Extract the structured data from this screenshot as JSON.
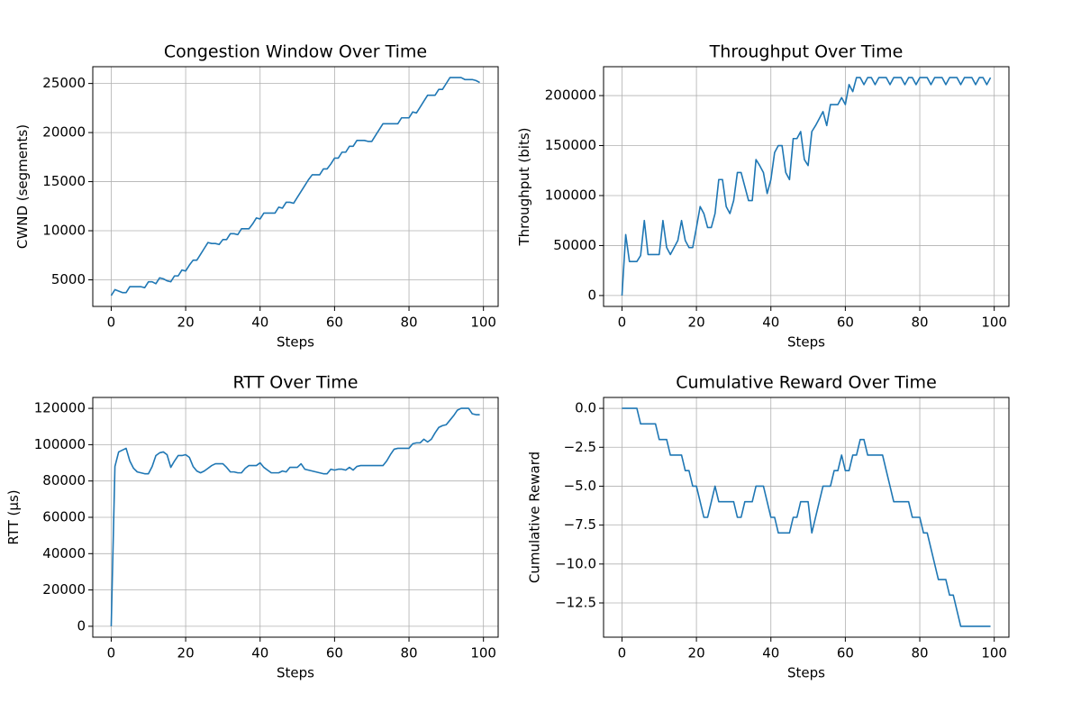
{
  "chart_data": [
    {
      "type": "line",
      "title": "Congestion Window Over Time",
      "xlabel": "Steps",
      "ylabel": "CWND (segments)",
      "x": [
        0,
        1,
        2,
        3,
        4,
        5,
        6,
        7,
        8,
        9,
        10,
        11,
        12,
        13,
        14,
        15,
        16,
        17,
        18,
        19,
        20,
        21,
        22,
        23,
        24,
        25,
        26,
        27,
        28,
        29,
        30,
        31,
        32,
        33,
        34,
        35,
        36,
        37,
        38,
        39,
        40,
        41,
        42,
        43,
        44,
        45,
        46,
        47,
        48,
        49,
        50,
        51,
        52,
        53,
        54,
        55,
        56,
        57,
        58,
        59,
        60,
        61,
        62,
        63,
        64,
        65,
        66,
        67,
        68,
        69,
        70,
        71,
        72,
        73,
        74,
        75,
        76,
        77,
        78,
        79,
        80,
        81,
        82,
        83,
        84,
        85,
        86,
        87,
        88,
        89,
        90,
        91,
        92,
        93,
        94,
        95,
        96,
        97,
        98,
        99
      ],
      "series": [
        {
          "color": "#1f77b4",
          "values": [
            3400,
            4000,
            3850,
            3700,
            3700,
            4300,
            4300,
            4300,
            4300,
            4200,
            4800,
            4800,
            4600,
            5200,
            5100,
            4900,
            4800,
            5400,
            5400,
            6000,
            5900,
            6500,
            7000,
            7000,
            7600,
            8200,
            8800,
            8700,
            8700,
            8600,
            9100,
            9100,
            9700,
            9700,
            9600,
            10200,
            10200,
            10200,
            10700,
            11300,
            11200,
            11800,
            11800,
            11800,
            11800,
            12400,
            12300,
            12900,
            12900,
            12800,
            13400,
            14000,
            14600,
            15200,
            15700,
            15700,
            15700,
            16300,
            16300,
            16800,
            17400,
            17400,
            18000,
            18000,
            18600,
            18600,
            19200,
            19200,
            19200,
            19100,
            19100,
            19700,
            20300,
            20900,
            20900,
            20900,
            20900,
            20900,
            21500,
            21500,
            21500,
            22100,
            22000,
            22600,
            23200,
            23800,
            23800,
            23800,
            24400,
            24400,
            25000,
            25600,
            25600,
            25600,
            25600,
            25400,
            25400,
            25400,
            25300,
            25100
          ]
        }
      ],
      "xlim": [
        -4.95,
        103.95
      ],
      "ylim": [
        2290,
        26710
      ],
      "xticks": [
        0,
        20,
        40,
        60,
        80,
        100
      ],
      "yticks": [
        5000,
        10000,
        15000,
        20000,
        25000
      ],
      "grid": true
    },
    {
      "type": "line",
      "title": "Throughput Over Time",
      "xlabel": "Steps",
      "ylabel": "Throughput (bits)",
      "x": [
        0,
        1,
        2,
        3,
        4,
        5,
        6,
        7,
        8,
        9,
        10,
        11,
        12,
        13,
        14,
        15,
        16,
        17,
        18,
        19,
        20,
        21,
        22,
        23,
        24,
        25,
        26,
        27,
        28,
        29,
        30,
        31,
        32,
        33,
        34,
        35,
        36,
        37,
        38,
        39,
        40,
        41,
        42,
        43,
        44,
        45,
        46,
        47,
        48,
        49,
        50,
        51,
        52,
        53,
        54,
        55,
        56,
        57,
        58,
        59,
        60,
        61,
        62,
        63,
        64,
        65,
        66,
        67,
        68,
        69,
        70,
        71,
        72,
        73,
        74,
        75,
        76,
        77,
        78,
        79,
        80,
        81,
        82,
        83,
        84,
        85,
        86,
        87,
        88,
        89,
        90,
        91,
        92,
        93,
        94,
        95,
        96,
        97,
        98,
        99
      ],
      "series": [
        {
          "color": "#1f77b4",
          "values": [
            0,
            61000,
            34000,
            34000,
            34000,
            40000,
            75000,
            41000,
            41000,
            41000,
            41000,
            75000,
            48000,
            41000,
            48000,
            55000,
            75000,
            55000,
            48000,
            48000,
            68000,
            89000,
            82000,
            68000,
            68000,
            82000,
            116000,
            116000,
            89000,
            82000,
            95000,
            123000,
            123000,
            109000,
            95000,
            95000,
            136000,
            130000,
            123000,
            102000,
            116000,
            143000,
            150000,
            150000,
            123000,
            116000,
            157000,
            157000,
            164000,
            136000,
            130000,
            164000,
            170000,
            177000,
            184000,
            170000,
            191000,
            191000,
            191000,
            198000,
            191000,
            211000,
            204000,
            218000,
            218000,
            211000,
            218000,
            218000,
            211000,
            218000,
            218000,
            218000,
            211000,
            218000,
            218000,
            218000,
            211000,
            218000,
            218000,
            211000,
            218000,
            218000,
            218000,
            211000,
            218000,
            218000,
            218000,
            211000,
            218000,
            218000,
            218000,
            211000,
            218000,
            218000,
            218000,
            211000,
            218000,
            218000,
            211000,
            218000
          ]
        }
      ],
      "xlim": [
        -4.95,
        103.95
      ],
      "ylim": [
        -10900,
        228900
      ],
      "xticks": [
        0,
        20,
        40,
        60,
        80,
        100
      ],
      "yticks": [
        0,
        50000,
        100000,
        150000,
        200000
      ],
      "grid": true
    },
    {
      "type": "line",
      "title": "RTT Over Time",
      "xlabel": "Steps",
      "ylabel": "RTT (µs)",
      "x": [
        0,
        1,
        2,
        3,
        4,
        5,
        6,
        7,
        8,
        9,
        10,
        11,
        12,
        13,
        14,
        15,
        16,
        17,
        18,
        19,
        20,
        21,
        22,
        23,
        24,
        25,
        26,
        27,
        28,
        29,
        30,
        31,
        32,
        33,
        34,
        35,
        36,
        37,
        38,
        39,
        40,
        41,
        42,
        43,
        44,
        45,
        46,
        47,
        48,
        49,
        50,
        51,
        52,
        53,
        54,
        55,
        56,
        57,
        58,
        59,
        60,
        61,
        62,
        63,
        64,
        65,
        66,
        67,
        68,
        69,
        70,
        71,
        72,
        73,
        74,
        75,
        76,
        77,
        78,
        79,
        80,
        81,
        82,
        83,
        84,
        85,
        86,
        87,
        88,
        89,
        90,
        91,
        92,
        93,
        94,
        95,
        96,
        97,
        98,
        99
      ],
      "series": [
        {
          "color": "#1f77b4",
          "values": [
            0,
            88000,
            96000,
            97000,
            98000,
            91000,
            87000,
            85000,
            84500,
            84000,
            84000,
            88000,
            94000,
            95500,
            96000,
            94500,
            87500,
            91000,
            94000,
            94000,
            94500,
            93000,
            88000,
            85500,
            84500,
            85500,
            87000,
            88500,
            89500,
            89500,
            89500,
            87500,
            85000,
            85000,
            84500,
            84500,
            87000,
            88500,
            88500,
            88500,
            90000,
            87500,
            86000,
            84500,
            84500,
            84500,
            85500,
            85000,
            87500,
            87500,
            87500,
            89500,
            86500,
            86000,
            85500,
            85000,
            84500,
            84000,
            84000,
            86500,
            86000,
            86500,
            86500,
            86000,
            87500,
            86000,
            88000,
            88500,
            88500,
            88500,
            88500,
            88500,
            88500,
            88500,
            91000,
            94500,
            97500,
            98000,
            98000,
            98000,
            98000,
            100500,
            101000,
            101000,
            103000,
            101500,
            103000,
            106500,
            109500,
            110500,
            111000,
            113500,
            116000,
            119000,
            120000,
            120000,
            120000,
            117000,
            116500,
            116500
          ]
        }
      ],
      "xlim": [
        -4.95,
        103.95
      ],
      "ylim": [
        -6000,
        126000
      ],
      "xticks": [
        0,
        20,
        40,
        60,
        80,
        100
      ],
      "yticks": [
        0,
        20000,
        40000,
        60000,
        80000,
        100000,
        120000
      ],
      "grid": true
    },
    {
      "type": "line",
      "title": "Cumulative Reward Over Time",
      "xlabel": "Steps",
      "ylabel": "Cumulative Reward",
      "x": [
        0,
        1,
        2,
        3,
        4,
        5,
        6,
        7,
        8,
        9,
        10,
        11,
        12,
        13,
        14,
        15,
        16,
        17,
        18,
        19,
        20,
        21,
        22,
        23,
        24,
        25,
        26,
        27,
        28,
        29,
        30,
        31,
        32,
        33,
        34,
        35,
        36,
        37,
        38,
        39,
        40,
        41,
        42,
        43,
        44,
        45,
        46,
        47,
        48,
        49,
        50,
        51,
        52,
        53,
        54,
        55,
        56,
        57,
        58,
        59,
        60,
        61,
        62,
        63,
        64,
        65,
        66,
        67,
        68,
        69,
        70,
        71,
        72,
        73,
        74,
        75,
        76,
        77,
        78,
        79,
        80,
        81,
        82,
        83,
        84,
        85,
        86,
        87,
        88,
        89,
        90,
        91,
        92,
        93,
        94,
        95,
        96,
        97,
        98,
        99
      ],
      "series": [
        {
          "color": "#1f77b4",
          "values": [
            0,
            0,
            0,
            0,
            0,
            -1,
            -1,
            -1,
            -1,
            -1,
            -2,
            -2,
            -2,
            -3,
            -3,
            -3,
            -3,
            -4,
            -4,
            -5,
            -5,
            -6,
            -7,
            -7,
            -6,
            -5,
            -6,
            -6,
            -6,
            -6,
            -6,
            -7,
            -7,
            -6,
            -6,
            -6,
            -5,
            -5,
            -5,
            -6,
            -7,
            -7,
            -8,
            -8,
            -8,
            -8,
            -7,
            -7,
            -6,
            -6,
            -6,
            -8,
            -7,
            -6,
            -5,
            -5,
            -5,
            -4,
            -4,
            -3,
            -4,
            -4,
            -3,
            -3,
            -2,
            -2,
            -3,
            -3,
            -3,
            -3,
            -3,
            -4,
            -5,
            -6,
            -6,
            -6,
            -6,
            -6,
            -7,
            -7,
            -7,
            -8,
            -8,
            -9,
            -10,
            -11,
            -11,
            -11,
            -12,
            -12,
            -13,
            -14,
            -14,
            -14,
            -14,
            -14,
            -14,
            -14,
            -14,
            -14
          ]
        }
      ],
      "xlim": [
        -4.95,
        103.95
      ],
      "ylim": [
        -14.7,
        0.7
      ],
      "xticks": [
        0,
        20,
        40,
        60,
        80,
        100
      ],
      "yticks": [
        {
          "value": 0,
          "label": "0.0"
        },
        {
          "value": -2.5,
          "label": "−2.5"
        },
        {
          "value": -5,
          "label": "−5.0"
        },
        {
          "value": -7.5,
          "label": "−7.5"
        },
        {
          "value": -10,
          "label": "−10.0"
        },
        {
          "value": -12.5,
          "label": "−12.5"
        }
      ],
      "grid": true
    }
  ]
}
